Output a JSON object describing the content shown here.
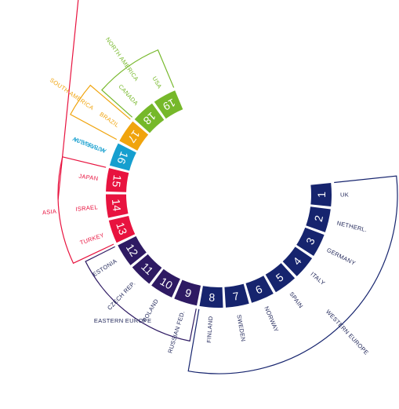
{
  "colors": {
    "western_europe": "#16246e",
    "eastern_europe": "#2e1a63",
    "asia": "#e8133f",
    "australia": "#169fcf",
    "south_america": "#f0a40d",
    "north_america": "#76b82a",
    "label_text": "#1f2558"
  },
  "regions": [
    {
      "key": "western_europe",
      "name": "WESTERN EUROPE"
    },
    {
      "key": "eastern_europe",
      "name": "EASTERN EUROPE"
    },
    {
      "key": "asia",
      "name": "ASIA"
    },
    {
      "key": "australia",
      "name": "AUSTRALIA"
    },
    {
      "key": "south_america",
      "name": "SOUTH AMERICA"
    },
    {
      "key": "north_america",
      "name": "NORTH AMERICA"
    }
  ],
  "segments": [
    {
      "num": "1",
      "country": "UK",
      "region": "western_europe"
    },
    {
      "num": "2",
      "country": "NETHERL.",
      "region": "western_europe"
    },
    {
      "num": "3",
      "country": "GERMANY",
      "region": "western_europe"
    },
    {
      "num": "4",
      "country": "ITALY",
      "region": "western_europe"
    },
    {
      "num": "5",
      "country": "SPAIN",
      "region": "western_europe"
    },
    {
      "num": "6",
      "country": "NORWAY",
      "region": "western_europe"
    },
    {
      "num": "7",
      "country": "SWEDEN",
      "region": "western_europe"
    },
    {
      "num": "8",
      "country": "FINLAND",
      "region": "western_europe"
    },
    {
      "num": "9",
      "country": "RUSSIAN FED.",
      "region": "eastern_europe"
    },
    {
      "num": "10",
      "country": "POLAND",
      "region": "eastern_europe"
    },
    {
      "num": "11",
      "country": "CZECH REP.",
      "region": "eastern_europe"
    },
    {
      "num": "12",
      "country": "ESTONIA",
      "region": "eastern_europe"
    },
    {
      "num": "13",
      "country": "TURKEY",
      "region": "asia"
    },
    {
      "num": "14",
      "country": "ISRAEL",
      "region": "asia"
    },
    {
      "num": "15",
      "country": "JAPAN",
      "region": "asia"
    },
    {
      "num": "16",
      "country": "AUSTRALIA",
      "region": "australia"
    },
    {
      "num": "17",
      "country": "BRAZIL",
      "region": "south_america"
    },
    {
      "num": "18",
      "country": "CANADA",
      "region": "north_america"
    },
    {
      "num": "19",
      "country": "USA",
      "region": "north_america"
    }
  ]
}
